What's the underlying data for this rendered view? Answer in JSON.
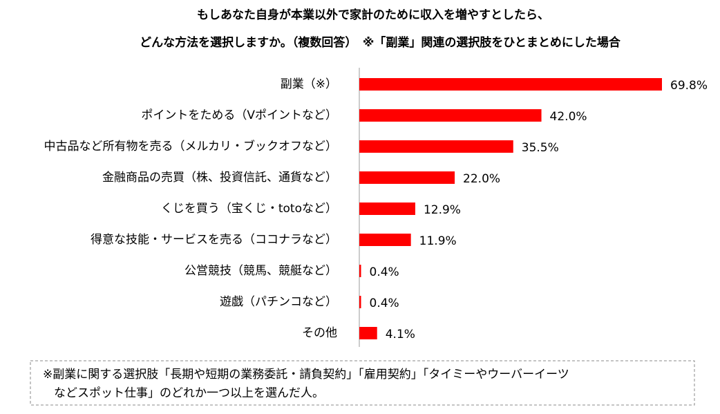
{
  "chart_data": {
    "type": "hbar",
    "title": [
      "もしあなた自身が本業以外で家計のために収入を増やすとしたら、",
      "どんな方法を選択しますか。（複数回答）　※「副業」関連の選択肢をひとまとめにした場合"
    ],
    "categories": [
      "副業（※）",
      "ポイントをためる（Vポイントなど）",
      "中古品など所有物を売る（メルカリ・ブックオフなど）",
      "金融商品の売買（株、投資信託、通貨など）",
      "くじを買う（宝くじ・totoなど）",
      "得意な技能・サービスを売る（ココナラなど）",
      "公営競技（競馬、競艇など）",
      "遊戯（パチンコなど）",
      "その他"
    ],
    "values": [
      69.8,
      42.0,
      35.5,
      22.0,
      12.9,
      11.9,
      0.4,
      0.4,
      4.1
    ],
    "value_labels": [
      "69.8%",
      "42.0%",
      "35.5%",
      "22.0%",
      "12.9%",
      "11.9%",
      "0.4%",
      "0.4%",
      "4.1%"
    ],
    "color": "#ff0000",
    "footnote": [
      "※副業に関する選択肢「長期や短期の業務委託・請負契約」「雇用契約」「タイミーやウーバーイーツ",
      "などスポット仕事」のどれか一つ以上を選んだ人。"
    ]
  }
}
